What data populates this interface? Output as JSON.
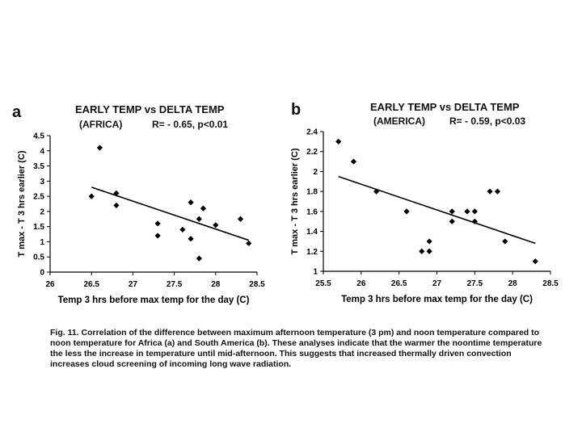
{
  "caption": "Fig. 11. Correlation of the difference between maximum afternoon temperature (3 pm) and noon temperature compared to noon temperature for Africa (a) and South America (b). These analyses indicate that the warmer the noontime temperature the less the increase in temperature until mid-afternoon. This suggests that increased thermally driven convection increases cloud screening of incoming long wave radiation.",
  "chart_data": [
    {
      "panel": "a",
      "type": "scatter",
      "title": "EARLY TEMP vs DELTA TEMP",
      "region": "(AFRICA)",
      "stats": "R= - 0.65, p<0.01",
      "xlabel": "Temp 3 hrs before max temp for the day (C)",
      "ylabel": "T max - T 3 hrs earlier (C)",
      "xlim": [
        26,
        28.5
      ],
      "ylim": [
        0,
        4.5
      ],
      "xticks": [
        "26",
        "26.5",
        "27",
        "27.5",
        "28",
        "28.5"
      ],
      "yticks": [
        "0",
        "0.5",
        "1",
        "1.5",
        "2",
        "2.5",
        "3",
        "3.5",
        "4",
        "4.5"
      ],
      "points": [
        {
          "x": 26.5,
          "y": 2.5
        },
        {
          "x": 26.6,
          "y": 4.1
        },
        {
          "x": 26.8,
          "y": 2.6
        },
        {
          "x": 26.8,
          "y": 2.2
        },
        {
          "x": 27.3,
          "y": 1.6
        },
        {
          "x": 27.3,
          "y": 1.2
        },
        {
          "x": 27.6,
          "y": 1.4
        },
        {
          "x": 27.7,
          "y": 2.3
        },
        {
          "x": 27.7,
          "y": 1.1
        },
        {
          "x": 27.8,
          "y": 1.75
        },
        {
          "x": 27.8,
          "y": 0.45
        },
        {
          "x": 27.85,
          "y": 2.1
        },
        {
          "x": 28.0,
          "y": 1.55
        },
        {
          "x": 28.3,
          "y": 1.75
        },
        {
          "x": 28.4,
          "y": 0.95
        }
      ],
      "trend": {
        "x1": 26.5,
        "y1": 2.8,
        "x2": 28.4,
        "y2": 1.05
      }
    },
    {
      "panel": "b",
      "type": "scatter",
      "title": "EARLY TEMP vs DELTA TEMP",
      "region": "(AMERICA)",
      "stats": "R= - 0.59, p<0.03",
      "xlabel": "Temp 3 hrs before max temp for the day (C)",
      "ylabel": "T max - T 3 hrs earlier (C)",
      "xlim": [
        25.5,
        28.5
      ],
      "ylim": [
        1,
        2.4
      ],
      "xticks": [
        "25.5",
        "26",
        "26.5",
        "27",
        "27.5",
        "28",
        "28.5"
      ],
      "yticks": [
        "1",
        "1.2",
        "1.4",
        "1.6",
        "1.8",
        "2",
        "2.2",
        "2.4"
      ],
      "points": [
        {
          "x": 25.7,
          "y": 2.3
        },
        {
          "x": 25.9,
          "y": 2.1
        },
        {
          "x": 26.2,
          "y": 1.8
        },
        {
          "x": 26.6,
          "y": 1.6
        },
        {
          "x": 26.8,
          "y": 1.2
        },
        {
          "x": 26.9,
          "y": 1.3
        },
        {
          "x": 26.9,
          "y": 1.2
        },
        {
          "x": 27.2,
          "y": 1.6
        },
        {
          "x": 27.2,
          "y": 1.5
        },
        {
          "x": 27.4,
          "y": 1.6
        },
        {
          "x": 27.5,
          "y": 1.6
        },
        {
          "x": 27.5,
          "y": 1.5
        },
        {
          "x": 27.7,
          "y": 1.8
        },
        {
          "x": 27.8,
          "y": 1.8
        },
        {
          "x": 27.9,
          "y": 1.3
        },
        {
          "x": 28.3,
          "y": 1.1
        }
      ],
      "trend": {
        "x1": 25.7,
        "y1": 1.95,
        "x2": 28.3,
        "y2": 1.28
      }
    }
  ]
}
